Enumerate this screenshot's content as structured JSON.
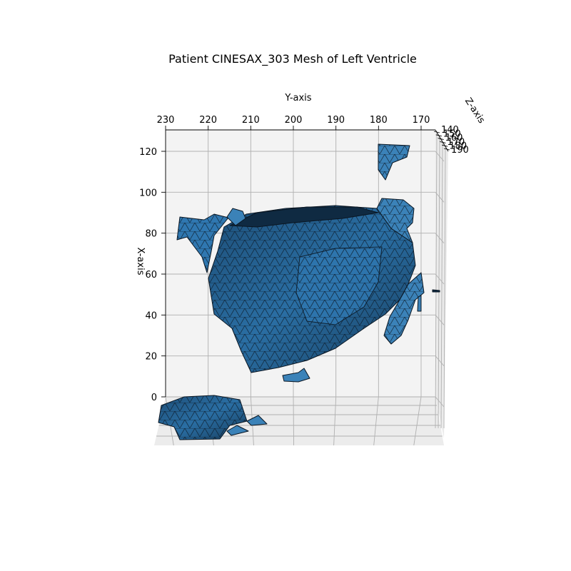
{
  "chart_data": {
    "type": "3d-mesh",
    "title": "Patient CINESAX_303 Mesh of Left Ventricle",
    "xlabel": "X-axis",
    "ylabel": "Y-axis",
    "zlabel": "Z-axis",
    "x_ticks": [
      "0",
      "20",
      "40",
      "60",
      "80",
      "100",
      "120"
    ],
    "y_ticks": [
      "230",
      "220",
      "210",
      "200",
      "190",
      "180",
      "170"
    ],
    "z_ticks": [
      "140",
      "150",
      "160",
      "170",
      "180",
      "190"
    ],
    "xlim": [
      0,
      125
    ],
    "ylim": [
      230,
      168
    ],
    "zlim": [
      140,
      190
    ],
    "grid": true,
    "colors": {
      "face": "#3b82b8",
      "face_dark": "#0d2336",
      "edge": "#0a1622",
      "pane": "#f2f2f2",
      "grid": "#b0b0b0"
    }
  }
}
